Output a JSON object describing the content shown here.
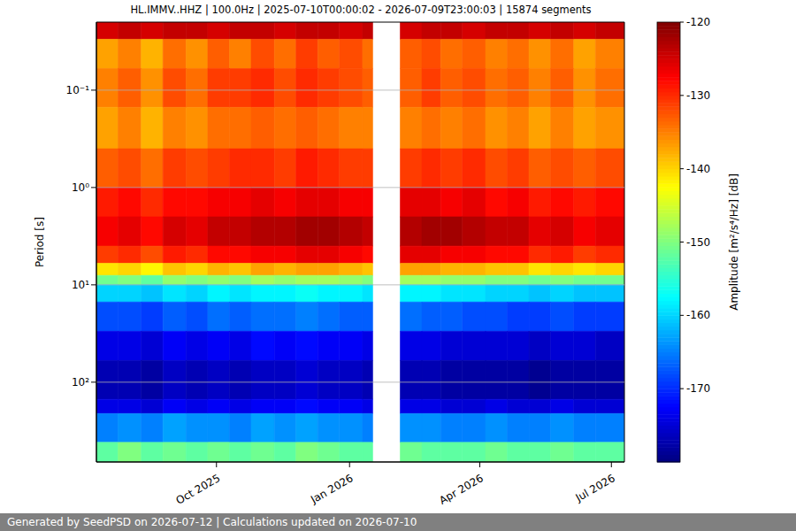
{
  "chart_data": {
    "type": "heatmap",
    "title": "HL.IMMV..HHZ | 100.0Hz | 2025-07-10T00:00:02 - 2026-07-09T23:00:03 | 15874 segments",
    "ylabel": "Period [s]",
    "zlabel": "Amplitude [m²/s⁴/Hz] [dB]",
    "footer": "Generated by SeedPSD on 2026-07-12 | Calculations updated on 2026-07-10",
    "log": "y",
    "grid": true,
    "xlim": [
      "2025-07-10",
      "2026-07-10"
    ],
    "xticks": [
      {
        "value": "2025-10-01",
        "label": "Oct 2025"
      },
      {
        "value": "2026-01-01",
        "label": "Jan 2026"
      },
      {
        "value": "2026-04-01",
        "label": "Apr 2026"
      },
      {
        "value": "2026-07-01",
        "label": "Jul 2026"
      }
    ],
    "ylim": [
      0.02,
      660
    ],
    "yticks": [
      {
        "value": 0.1,
        "label": "10⁻¹"
      },
      {
        "value": 1,
        "label": "10⁰"
      },
      {
        "value": 10,
        "label": "10¹"
      },
      {
        "value": 100,
        "label": "10²"
      }
    ],
    "zlim": [
      -180,
      -120
    ],
    "zticks": [
      -120,
      -130,
      -140,
      -150,
      -160,
      -170
    ],
    "x_bins": [
      "2025-07-10",
      "2025-07-25",
      "2025-08-10",
      "2025-08-25",
      "2025-09-10",
      "2025-09-25",
      "2025-10-10",
      "2025-10-25",
      "2025-11-10",
      "2025-11-25",
      "2025-12-10",
      "2025-12-25",
      "2026-01-10",
      "2026-01-17",
      "2026-02-05",
      "2026-02-20",
      "2026-03-05",
      "2026-03-20",
      "2026-04-05",
      "2026-04-20",
      "2026-05-05",
      "2026-05-20",
      "2026-06-05",
      "2026-06-20",
      "2026-07-10"
    ],
    "y_bins": [
      0.02,
      0.03,
      0.06,
      0.15,
      0.4,
      1,
      2,
      4,
      6,
      8,
      10,
      15,
      30,
      60,
      150,
      210,
      415,
      660
    ],
    "cells": [
      [
        -125,
        -124,
        -125,
        -124,
        -124,
        -125,
        -124,
        -124,
        -125,
        -124,
        -124,
        -125,
        -124,
        null,
        -125,
        -124,
        -124,
        -125,
        -124,
        -124,
        -125,
        -124,
        -125,
        -124
      ],
      [
        -137,
        -135,
        -138,
        -134,
        -136,
        -133,
        -135,
        -132,
        -134,
        -131,
        -133,
        -132,
        -134,
        null,
        -133,
        -132,
        -134,
        -133,
        -135,
        -134,
        -136,
        -134,
        -137,
        -135
      ],
      [
        -135,
        -133,
        -136,
        -132,
        -134,
        -131,
        -131,
        -130,
        -132,
        -130,
        -131,
        -132,
        -133,
        null,
        -133,
        -131,
        -133,
        -132,
        -134,
        -133,
        -135,
        -133,
        -136,
        -134
      ],
      [
        -137,
        -135,
        -138,
        -135,
        -136,
        -134,
        -134,
        -133,
        -134,
        -133,
        -134,
        -135,
        -135,
        null,
        -135,
        -134,
        -135,
        -134,
        -136,
        -135,
        -137,
        -135,
        -137,
        -136
      ],
      [
        -133,
        -132,
        -134,
        -131,
        -132,
        -131,
        -130,
        -130,
        -131,
        -129,
        -130,
        -131,
        -131,
        null,
        -131,
        -130,
        -131,
        -130,
        -132,
        -131,
        -133,
        -132,
        -133,
        -132
      ],
      [
        -129,
        -128,
        -130,
        -128,
        -128,
        -127,
        -127,
        -126,
        -127,
        -126,
        -126,
        -127,
        -127,
        null,
        -126,
        -126,
        -127,
        -126,
        -128,
        -127,
        -129,
        -128,
        -129,
        -128
      ],
      [
        -127,
        -126,
        -128,
        -125,
        -126,
        -124,
        -124,
        -123,
        -123,
        -122,
        -122,
        -123,
        -124,
        null,
        -123,
        -122,
        -122,
        -123,
        -124,
        -124,
        -126,
        -125,
        -127,
        -126
      ],
      [
        -131,
        -130,
        -132,
        -129,
        -130,
        -128,
        -128,
        -127,
        -127,
        -126,
        -126,
        -127,
        -128,
        null,
        -126,
        -126,
        -127,
        -127,
        -128,
        -128,
        -130,
        -129,
        -131,
        -130
      ],
      [
        -141,
        -140,
        -142,
        -139,
        -140,
        -138,
        -139,
        -137,
        -138,
        -137,
        -137,
        -138,
        -139,
        null,
        -137,
        -137,
        -138,
        -138,
        -139,
        -139,
        -141,
        -140,
        -141,
        -140
      ],
      [
        -151,
        -150,
        -152,
        -149,
        -150,
        -149,
        -150,
        -148,
        -149,
        -148,
        -148,
        -149,
        -150,
        null,
        -148,
        -148,
        -149,
        -149,
        -150,
        -150,
        -151,
        -150,
        -151,
        -151
      ],
      [
        -160,
        -160,
        -161,
        -159,
        -160,
        -158,
        -159,
        -158,
        -158,
        -157,
        -158,
        -158,
        -159,
        null,
        -158,
        -158,
        -159,
        -159,
        -160,
        -160,
        -161,
        -160,
        -161,
        -161
      ],
      [
        -168,
        -168,
        -169,
        -167,
        -168,
        -166,
        -167,
        -166,
        -166,
        -165,
        -166,
        -167,
        -167,
        null,
        -166,
        -167,
        -167,
        -168,
        -168,
        -169,
        -169,
        -168,
        -169,
        -169
      ],
      [
        -174,
        -174,
        -175,
        -173,
        -174,
        -173,
        -174,
        -172,
        -173,
        -172,
        -173,
        -173,
        -174,
        null,
        -174,
        -174,
        -175,
        -175,
        -175,
        -175,
        -176,
        -175,
        -175,
        -176
      ],
      [
        -177,
        -177,
        -178,
        -176,
        -177,
        -176,
        -177,
        -176,
        -176,
        -175,
        -176,
        -176,
        -177,
        null,
        -177,
        -177,
        -178,
        -178,
        -178,
        -178,
        -179,
        -178,
        -178,
        -178
      ],
      [
        -174,
        -174,
        -175,
        -173,
        -174,
        -173,
        -174,
        -173,
        -173,
        -172,
        -173,
        -173,
        -174,
        null,
        -174,
        -174,
        -175,
        -175,
        -174,
        -175,
        -175,
        -174,
        -175,
        -175
      ],
      [
        -165,
        -164,
        -165,
        -163,
        -164,
        -164,
        -165,
        -163,
        -164,
        -163,
        -164,
        -164,
        -165,
        null,
        -164,
        -164,
        -165,
        -165,
        -164,
        -165,
        -165,
        -164,
        -165,
        -165
      ],
      [
        -152,
        -150,
        -152,
        -151,
        -152,
        -151,
        -152,
        -151,
        -152,
        -150,
        -151,
        -152,
        -152,
        null,
        -151,
        -152,
        -152,
        -152,
        -151,
        -152,
        -152,
        -151,
        -152,
        -152
      ]
    ]
  }
}
